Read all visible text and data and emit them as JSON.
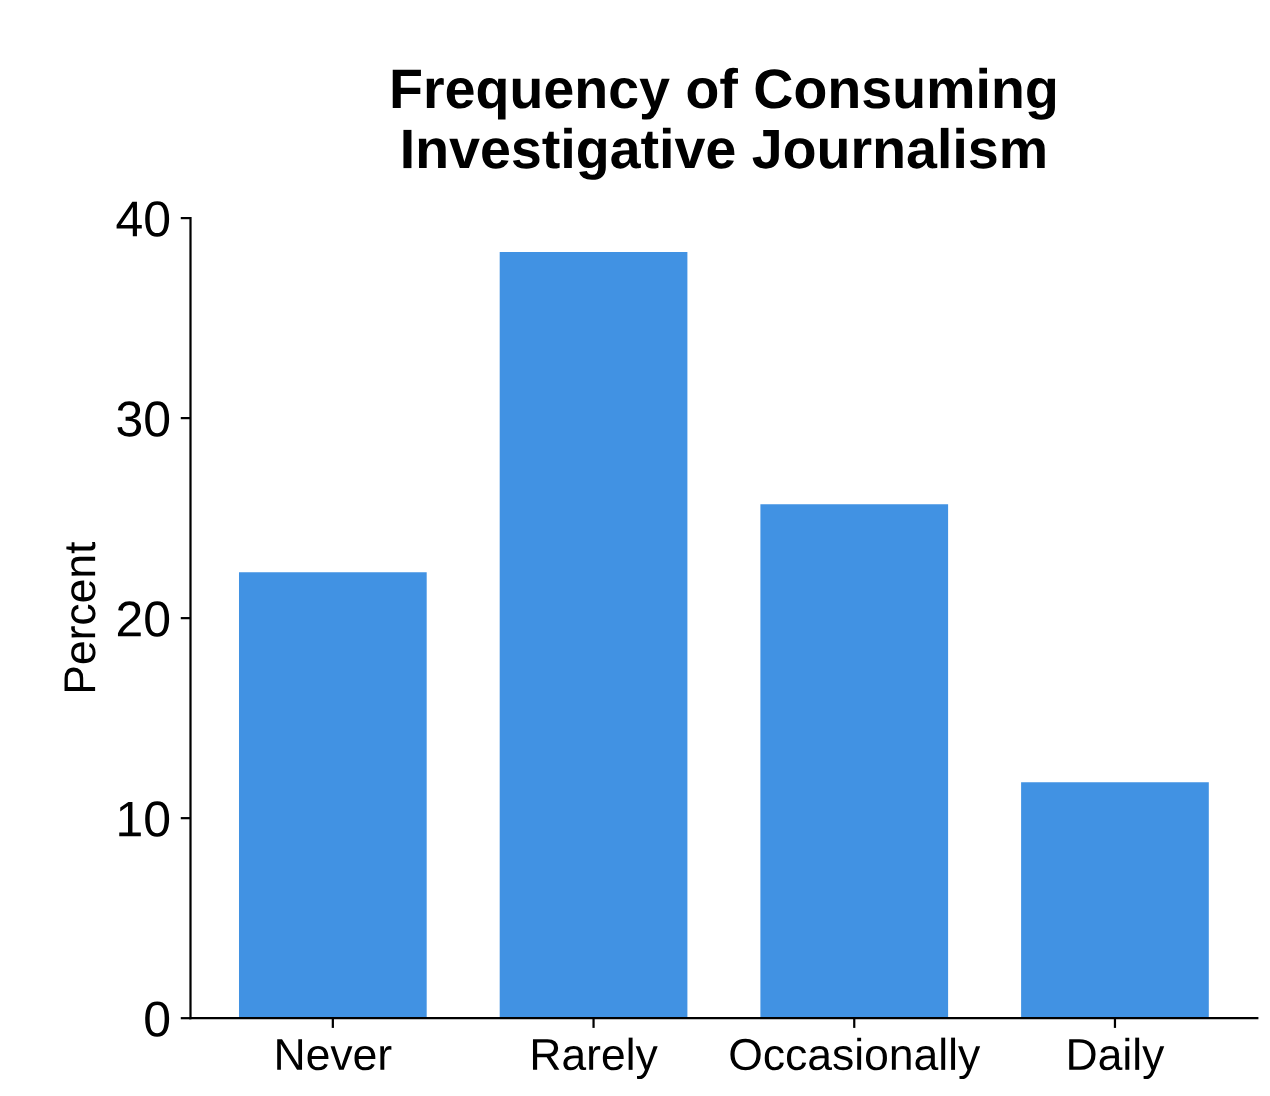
{
  "chart_data": {
    "type": "bar",
    "title": "Frequency of Consuming\nInvestigative Journalism",
    "ylabel": "Percent",
    "categories": [
      "Never",
      "Rarely",
      "Occasionally",
      "Daily"
    ],
    "values": [
      22.3,
      38.3,
      25.7,
      11.8
    ],
    "color": "#4192e3",
    "ylim": [
      0,
      40
    ],
    "yticks": [
      0,
      10,
      20,
      30,
      40
    ],
    "grid": false,
    "legend": false
  }
}
